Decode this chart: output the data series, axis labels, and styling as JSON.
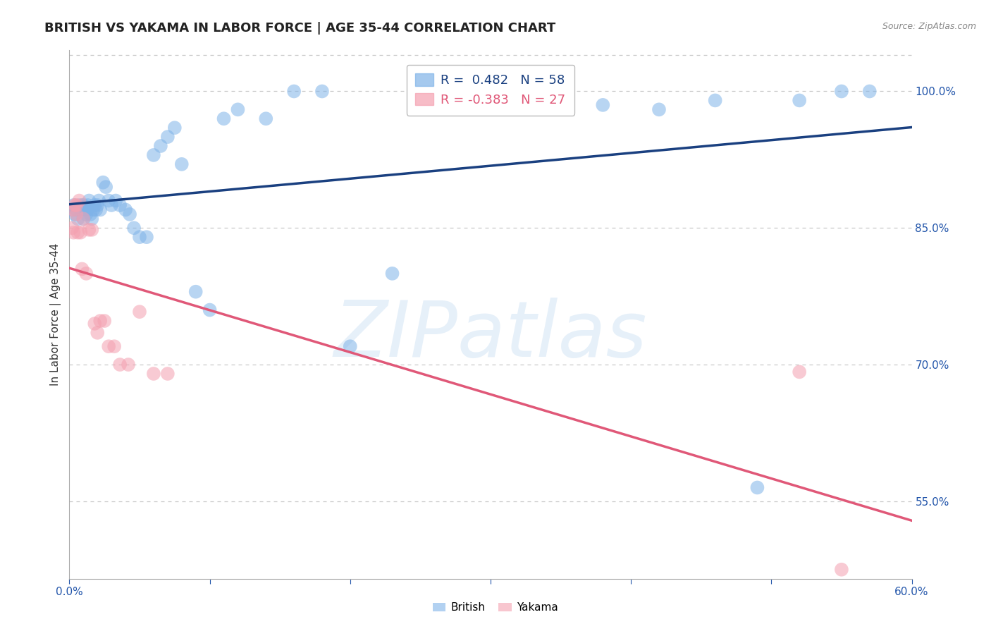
{
  "title": "BRITISH VS YAKAMA IN LABOR FORCE | AGE 35-44 CORRELATION CHART",
  "source": "Source: ZipAtlas.com",
  "ylabel": "In Labor Force | Age 35-44",
  "xlim": [
    0.0,
    0.6
  ],
  "ylim": [
    0.465,
    1.045
  ],
  "xtick_positions": [
    0.0,
    0.1,
    0.2,
    0.3,
    0.4,
    0.5,
    0.6
  ],
  "xticklabels": [
    "0.0%",
    "",
    "",
    "",
    "",
    "",
    "60.0%"
  ],
  "yticks_right": [
    1.0,
    0.85,
    0.7,
    0.55
  ],
  "ytick_right_labels": [
    "100.0%",
    "85.0%",
    "70.0%",
    "55.0%"
  ],
  "grid_color": "#c8c8c8",
  "background_color": "#ffffff",
  "british_color": "#7fb3e8",
  "yakama_color": "#f4a0b0",
  "british_line_color": "#1a4080",
  "yakama_line_color": "#e05878",
  "british_R": 0.482,
  "british_N": 58,
  "yakama_R": -0.383,
  "yakama_N": 27,
  "title_fontsize": 13,
  "axis_label_fontsize": 11,
  "tick_fontsize": 11,
  "legend_fontsize": 13,
  "watermark": "ZIPatlas",
  "british_x": [
    0.002,
    0.003,
    0.004,
    0.005,
    0.006,
    0.007,
    0.008,
    0.009,
    0.01,
    0.01,
    0.011,
    0.012,
    0.013,
    0.013,
    0.014,
    0.015,
    0.016,
    0.017,
    0.018,
    0.019,
    0.02,
    0.021,
    0.022,
    0.024,
    0.026,
    0.028,
    0.03,
    0.033,
    0.036,
    0.04,
    0.043,
    0.046,
    0.05,
    0.055,
    0.06,
    0.065,
    0.07,
    0.075,
    0.08,
    0.09,
    0.1,
    0.11,
    0.12,
    0.14,
    0.16,
    0.18,
    0.2,
    0.23,
    0.26,
    0.3,
    0.34,
    0.38,
    0.42,
    0.46,
    0.49,
    0.52,
    0.55,
    0.57
  ],
  "british_y": [
    0.87,
    0.875,
    0.865,
    0.87,
    0.86,
    0.875,
    0.87,
    0.875,
    0.86,
    0.875,
    0.87,
    0.865,
    0.87,
    0.875,
    0.88,
    0.865,
    0.86,
    0.87,
    0.875,
    0.87,
    0.875,
    0.88,
    0.87,
    0.9,
    0.895,
    0.88,
    0.875,
    0.88,
    0.875,
    0.87,
    0.865,
    0.85,
    0.84,
    0.84,
    0.93,
    0.94,
    0.95,
    0.96,
    0.92,
    0.78,
    0.76,
    0.97,
    0.98,
    0.97,
    1.0,
    1.0,
    0.72,
    0.8,
    0.985,
    0.99,
    0.99,
    0.985,
    0.98,
    0.99,
    0.565,
    0.99,
    1.0,
    1.0
  ],
  "yakama_x": [
    0.002,
    0.003,
    0.003,
    0.004,
    0.005,
    0.005,
    0.006,
    0.007,
    0.008,
    0.009,
    0.01,
    0.012,
    0.014,
    0.016,
    0.018,
    0.02,
    0.022,
    0.025,
    0.028,
    0.032,
    0.036,
    0.042,
    0.05,
    0.06,
    0.07,
    0.52,
    0.55
  ],
  "yakama_y": [
    0.85,
    0.845,
    0.87,
    0.875,
    0.865,
    0.875,
    0.845,
    0.88,
    0.845,
    0.805,
    0.86,
    0.8,
    0.848,
    0.848,
    0.745,
    0.735,
    0.748,
    0.748,
    0.72,
    0.72,
    0.7,
    0.7,
    0.758,
    0.69,
    0.69,
    0.692,
    0.475
  ]
}
